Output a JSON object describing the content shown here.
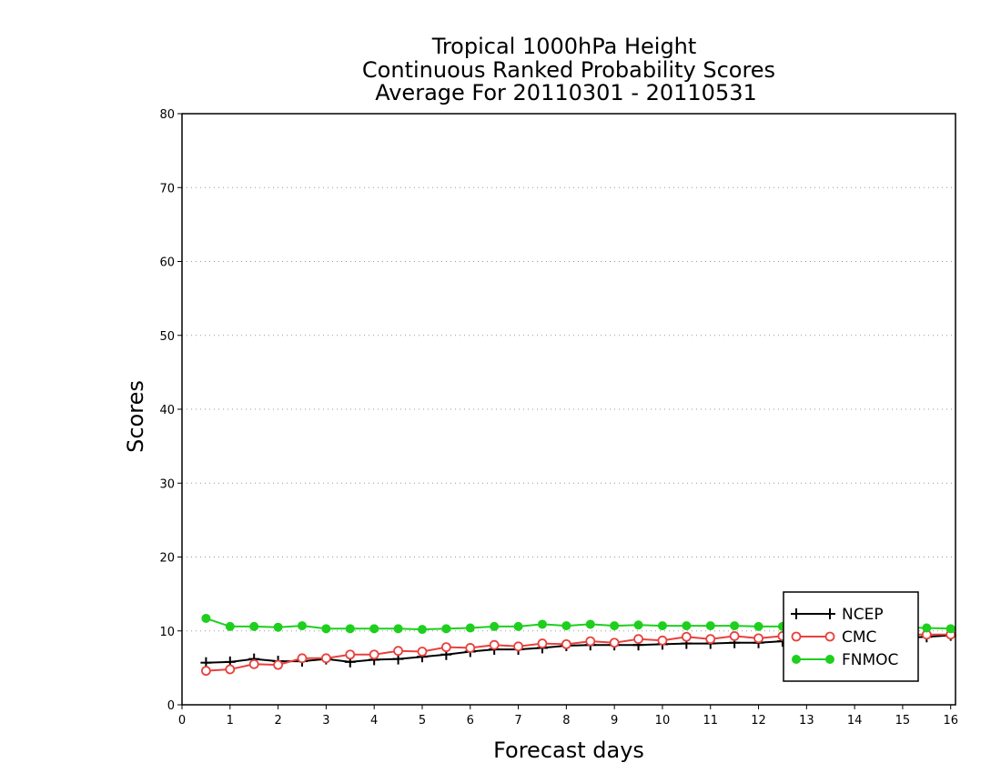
{
  "chart_data": {
    "type": "line",
    "title_lines": [
      "Tropical 1000hPa Height",
      "Continuous Ranked Probability Scores",
      "Average For 20110301 - 20110531"
    ],
    "xlabel": "Forecast days",
    "ylabel": "Scores",
    "xlim": [
      0,
      16.1
    ],
    "ylim": [
      0,
      80
    ],
    "xticks": [
      0,
      1,
      2,
      3,
      4,
      5,
      6,
      7,
      8,
      9,
      10,
      11,
      12,
      13,
      14,
      15,
      16
    ],
    "yticks": [
      0,
      10,
      20,
      30,
      40,
      50,
      60,
      70,
      80
    ],
    "grid": "horizontal dotted",
    "legend_position": "bottom-right",
    "x": [
      0.5,
      1,
      1.5,
      2,
      2.5,
      3,
      3.5,
      4,
      4.5,
      5,
      5.5,
      6,
      6.5,
      7,
      7.5,
      8,
      8.5,
      9,
      9.5,
      10,
      10.5,
      11,
      11.5,
      12,
      12.5,
      13,
      13.5,
      14,
      14.5,
      15,
      15.5,
      16
    ],
    "series": [
      {
        "name": "NCEP",
        "color": "#000000",
        "marker": "plus",
        "values": [
          5.7,
          5.8,
          6.2,
          5.9,
          5.9,
          6.2,
          5.8,
          6.1,
          6.2,
          6.5,
          6.8,
          7.2,
          7.5,
          7.5,
          7.7,
          8.0,
          8.1,
          8.1,
          8.1,
          8.2,
          8.3,
          8.3,
          8.4,
          8.4,
          8.6,
          8.7,
          8.8,
          8.9,
          9.0,
          9.1,
          9.2,
          9.4
        ]
      },
      {
        "name": "CMC",
        "color": "#e8413c",
        "marker": "open-circle",
        "values": [
          4.6,
          4.8,
          5.5,
          5.4,
          6.3,
          6.3,
          6.8,
          6.8,
          7.3,
          7.2,
          7.8,
          7.7,
          8.1,
          7.9,
          8.3,
          8.2,
          8.6,
          8.4,
          8.9,
          8.7,
          9.2,
          8.9,
          9.3,
          9.0,
          9.3,
          9.3,
          9.4,
          9.4,
          9.4,
          9.5,
          9.5,
          9.5
        ]
      },
      {
        "name": "FNMOC",
        "color": "#1ecf1e",
        "marker": "filled-circle",
        "values": [
          11.7,
          10.6,
          10.6,
          10.5,
          10.7,
          10.3,
          10.3,
          10.3,
          10.3,
          10.2,
          10.3,
          10.4,
          10.6,
          10.6,
          10.9,
          10.7,
          10.9,
          10.7,
          10.8,
          10.7,
          10.7,
          10.7,
          10.7,
          10.6,
          10.6,
          10.6,
          10.6,
          10.5,
          10.5,
          10.5,
          10.4,
          10.3
        ]
      }
    ]
  }
}
